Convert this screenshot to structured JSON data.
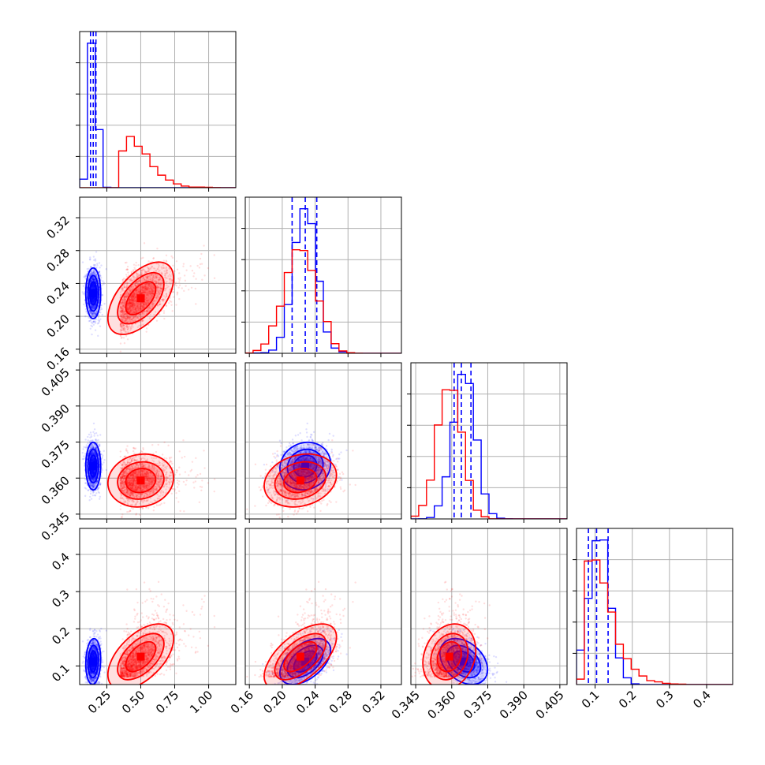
{
  "chart_data": {
    "type": "corner",
    "grid": true,
    "colors": {
      "blue": "#0000ff",
      "red": "#ff0000",
      "grid": "#b0b0b0"
    },
    "parameters": [
      {
        "range": [
          0.05,
          1.2
        ],
        "ticks": [
          0.25,
          0.5,
          0.75,
          1.0
        ],
        "tick_labels": [
          "0.25",
          "0.50",
          "0.75",
          "1.00"
        ]
      },
      {
        "range": [
          0.155,
          0.345
        ],
        "ticks": [
          0.16,
          0.2,
          0.24,
          0.28,
          0.32
        ],
        "tick_labels": [
          "0.16",
          "0.20",
          "0.24",
          "0.28",
          "0.32"
        ]
      },
      {
        "range": [
          0.343,
          0.408
        ],
        "ticks": [
          0.345,
          0.36,
          0.375,
          0.39,
          0.405
        ],
        "tick_labels": [
          "0.345",
          "0.360",
          "0.375",
          "0.390",
          "0.405"
        ]
      },
      {
        "range": [
          0.05,
          0.47
        ],
        "ticks": [
          0.1,
          0.2,
          0.3,
          0.4
        ],
        "tick_labels": [
          "0.1",
          "0.2",
          "0.3",
          "0.4"
        ]
      }
    ],
    "series": [
      {
        "color": "blue",
        "mean": [
          0.15,
          0.228,
          0.365,
          0.112
        ],
        "std": [
          0.025,
          0.014,
          0.0045,
          0.028
        ],
        "quantiles": [
          [
            0.13,
            0.15,
            0.17
          ],
          [
            0.212,
            0.228,
            0.242
          ],
          [
            0.361,
            0.364,
            0.368
          ],
          [
            0.082,
            0.104,
            0.135
          ]
        ],
        "show_quantiles": true
      },
      {
        "color": "red",
        "mean": [
          0.5,
          0.222,
          0.359,
          0.125
        ],
        "std": [
          0.11,
          0.02,
          0.005,
          0.04
        ],
        "show_quantiles": false
      }
    ],
    "correlation": {
      "blue": [
        [
          1,
          0.0,
          0.0,
          0.1
        ],
        [
          0.0,
          1,
          0.1,
          0.5
        ],
        [
          0.0,
          0.1,
          1,
          -0.35
        ],
        [
          0.1,
          0.5,
          -0.35,
          1
        ]
      ],
      "red": [
        [
          1,
          0.55,
          0.1,
          0.55
        ],
        [
          0.55,
          1,
          0.2,
          0.6
        ],
        [
          0.1,
          0.2,
          1,
          0.2
        ],
        [
          0.55,
          0.6,
          0.2,
          1
        ]
      ]
    }
  }
}
